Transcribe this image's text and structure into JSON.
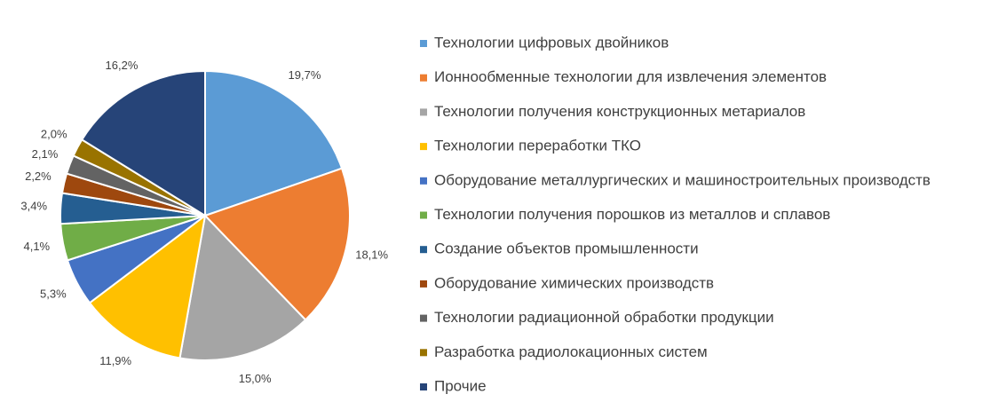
{
  "chart_data": {
    "type": "pie",
    "categories": [
      "Технологии цифровых двойников",
      "Ионнообменные технологии для извлечения элементов",
      "Технологии получения конструкционных метариалов",
      "Технологии переработки ТКО",
      "Оборудование металлургических и машиностроительных производств",
      "Технологии получения порошков из металлов и сплавов",
      "Создание объектов промышленности",
      "Оборудование химических производств",
      "Технологии радиационной обработки продукции",
      "Разработка радиолокационных систем",
      "Прочие"
    ],
    "values": [
      19.7,
      18.1,
      15.0,
      11.9,
      5.3,
      4.1,
      3.4,
      2.2,
      2.1,
      2.0,
      16.2
    ],
    "value_labels": [
      "19,7%",
      "18,1%",
      "15,0%",
      "11,9%",
      "5,3%",
      "4,1%",
      "3,4%",
      "2,2%",
      "2,1%",
      "2,0%",
      "16,2%"
    ],
    "colors": [
      "#5b9bd5",
      "#ed7d31",
      "#a5a5a5",
      "#ffc000",
      "#4472c4",
      "#70ad47",
      "#255e91",
      "#9e480e",
      "#636363",
      "#997300",
      "#264478"
    ],
    "legend": "right"
  }
}
